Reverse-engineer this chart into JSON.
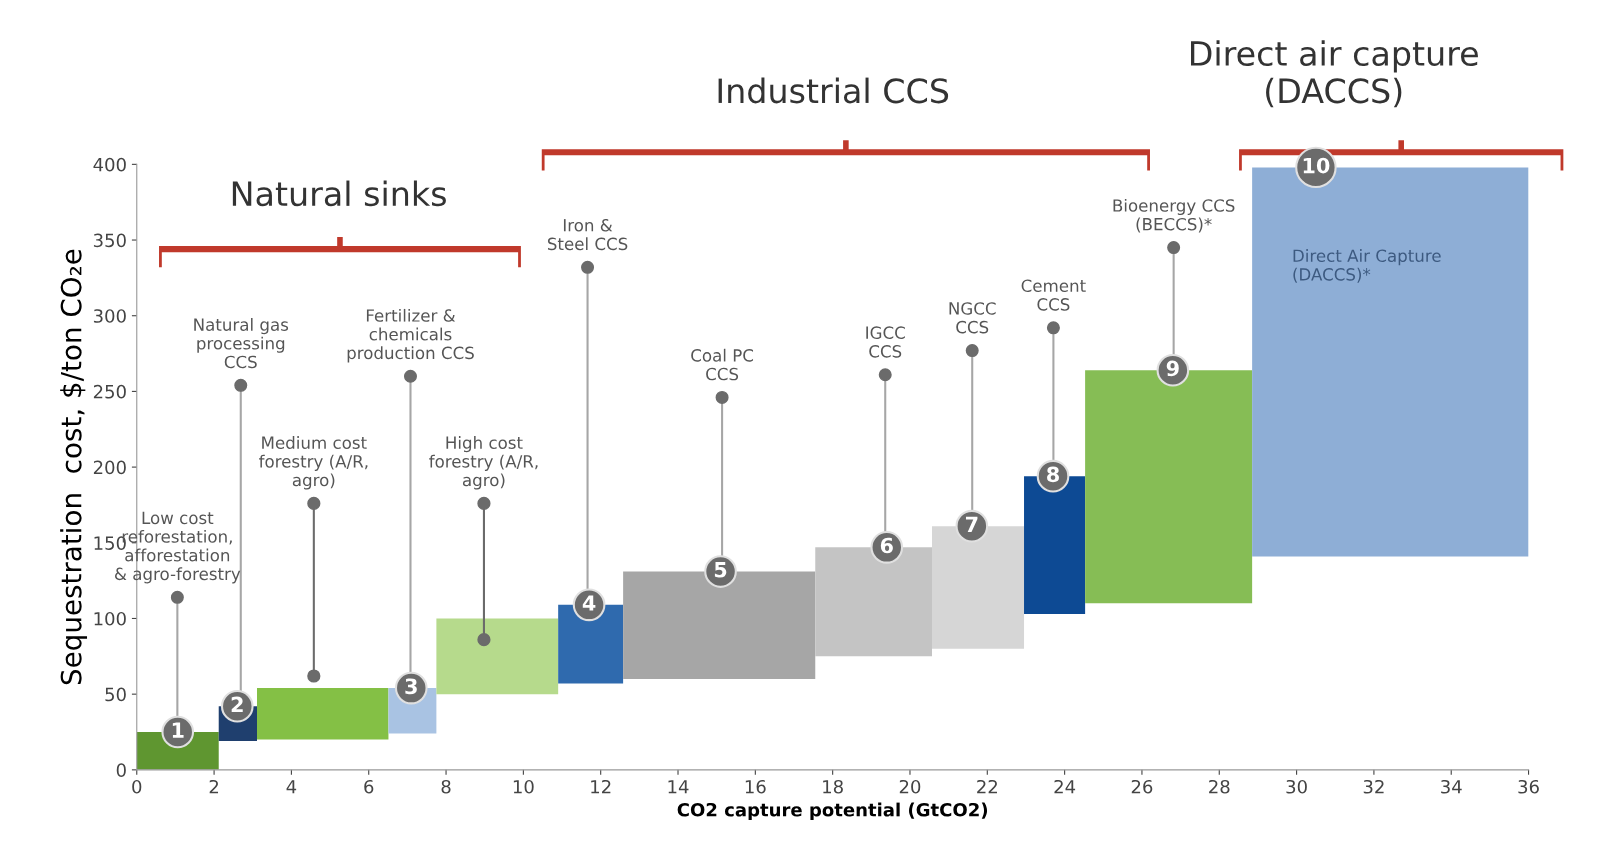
{
  "chart_data": {
    "type": "histogram",
    "xlabel": "CO2 capture potential (GtCO2)",
    "ylabel": "Sequestration  cost, $/ton CO₂e",
    "xlim": [
      0,
      36
    ],
    "xticks": [
      0,
      2,
      4,
      6,
      8,
      10,
      12,
      14,
      16,
      18,
      20,
      22,
      24,
      26,
      28,
      30,
      32,
      34,
      36
    ],
    "ylim": [
      0,
      400
    ],
    "yticks": [
      0,
      50,
      100,
      150,
      200,
      250,
      300,
      350,
      400
    ],
    "legend": false,
    "marker": "circle",
    "bins": [
      0,
      2.12,
      3.11,
      6.51,
      7.75,
      10.9,
      12.58,
      17.55,
      20.57,
      22.95,
      24.53,
      28.85,
      36
    ],
    "values": [
      25,
      23,
      34,
      30,
      50,
      52,
      71,
      72,
      81,
      91,
      154,
      257
    ],
    "base": [
      0,
      19,
      20,
      24,
      50,
      57,
      60,
      75,
      80,
      103,
      110,
      141
    ],
    "colors": [
      "#5f9630",
      "#1f3f6e",
      "#84c045",
      "#a9c3e3",
      "#b6da8c",
      "#2f6aae",
      "#a6a6a6",
      "#c4c4c4",
      "#d6d6d6",
      "#0d4a94",
      "#86bd55",
      "#8eaed6"
    ],
    "series": [
      {
        "type": "scatter",
        "color": "#6b6b6b",
        "x": [
          1.05,
          2.69,
          7.08,
          11.66,
          15.14,
          19.36,
          21.61,
          23.71,
          26.82
        ],
        "values": [
          114,
          254,
          260,
          332,
          246,
          261,
          277,
          292,
          345
        ],
        "errors": [
          [
            25,
            114
          ],
          [
            42,
            254
          ],
          [
            54,
            260
          ],
          [
            109,
            332
          ],
          [
            131,
            246
          ],
          [
            147,
            261
          ],
          [
            161,
            277
          ],
          [
            194,
            292
          ],
          [
            264,
            345
          ]
        ]
      },
      {
        "type": "line",
        "color": "#6b6b6b",
        "x": [
          4.58,
          4.58
        ],
        "values": [
          62,
          176
        ]
      },
      {
        "type": "line",
        "color": "#6b6b6b",
        "x": [
          8.98,
          8.98
        ],
        "values": [
          86,
          176
        ]
      }
    ],
    "annotations": [
      {
        "text": "1",
        "x": 1.06,
        "y": 25
      },
      {
        "text": "2",
        "x": 2.6,
        "y": 42
      },
      {
        "text": "3",
        "x": 7.1,
        "y": 54
      },
      {
        "text": "4",
        "x": 11.7,
        "y": 109
      },
      {
        "text": "5",
        "x": 15.1,
        "y": 131
      },
      {
        "text": "6",
        "x": 19.4,
        "y": 147
      },
      {
        "text": "7",
        "x": 21.6,
        "y": 161
      },
      {
        "text": "8",
        "x": 23.7,
        "y": 194
      },
      {
        "text": "9",
        "x": 26.8,
        "y": 264
      },
      {
        "text": "10",
        "x": 30.5,
        "y": 398
      },
      {
        "text": "Low cost\nreforestation,\nafforestation\n& agro-forestry",
        "x": 1.05,
        "y": 114
      },
      {
        "text": "Natural gas\nprocessing\nCCS",
        "x": 2.69,
        "y": 254
      },
      {
        "text": "Medium cost\nforestry (A/R,\nagro)",
        "x": 4.58,
        "y": 176
      },
      {
        "text": "Fertilizer &\nchemicals\nproduction CCS",
        "x": 7.08,
        "y": 260
      },
      {
        "text": "High cost\nforestry (A/R,\nagro)",
        "x": 8.98,
        "y": 176
      },
      {
        "text": "Iron &\nSteel CCS",
        "x": 11.66,
        "y": 332
      },
      {
        "text": "Coal PC\nCCS",
        "x": 15.14,
        "y": 246
      },
      {
        "text": "IGCC\nCCS",
        "x": 19.36,
        "y": 261
      },
      {
        "text": "NGCC\nCCS",
        "x": 21.61,
        "y": 277
      },
      {
        "text": "Cement\nCCS",
        "x": 23.71,
        "y": 292
      },
      {
        "text": "Bioenergy CCS\n(BECCS)*",
        "x": 26.82,
        "y": 345
      },
      "Direct Air Capture\n(DACCS)*",
      "Natural sinks",
      "Industrial CCS",
      "Direct air capture\n(DACCS)"
    ]
  }
}
